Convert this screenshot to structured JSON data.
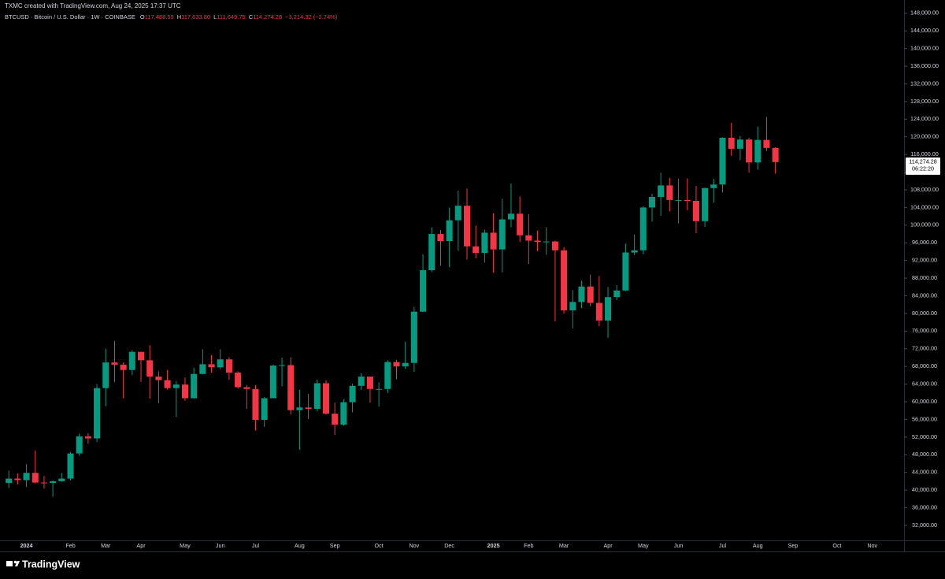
{
  "chart_data": {
    "type": "candlestick",
    "title": "TXMC created with TradingView.com, Aug 24, 2025 17:37 UTC",
    "subtitle": "BTCUSD · Bitcoin / U.S. Dollar · 1W · COINBASE",
    "ohlc_legend": [
      {
        "key": "O",
        "text": "117,488.59"
      },
      {
        "key": "H",
        "text": "117,633.80"
      },
      {
        "key": "L",
        "text": "111,649.75"
      },
      {
        "key": "C",
        "text": "114,274.28"
      }
    ],
    "change": "−3,214.32 (−2.74%)",
    "last_price": {
      "value": 114274.28,
      "label": "114,274.28",
      "countdown": "06:22:20"
    },
    "branding": "TradingView",
    "up_color": "#089981",
    "down_color": "#f23645",
    "open": [
      41600,
      42600,
      42250,
      43900,
      41700,
      41600,
      42000,
      42600,
      48300,
      52150,
      51700,
      63100,
      68900,
      68400,
      67200,
      71300,
      69400,
      65700,
      64900,
      63100,
      63900,
      60800,
      66300,
      68500,
      67800,
      69600,
      66600,
      63300,
      62900,
      55900,
      60800,
      68200,
      68300,
      58100,
      58700,
      58400,
      64200,
      57300,
      54800,
      59900,
      63600,
      65700,
      62900,
      62900,
      69000,
      68000,
      68800,
      80400,
      89800,
      98000,
      96400,
      101100,
      104400,
      95200,
      93700,
      98300,
      94500,
      101300,
      102600,
      97700,
      96500,
      96200,
      96300,
      94300,
      80700,
      82600,
      86100,
      82400,
      78400,
      83700,
      85200,
      93800,
      94300,
      104000,
      106400,
      109000,
      105700,
      105700,
      105500,
      100900,
      108400,
      109200,
      119800,
      117300,
      119400,
      114200,
      119300,
      117488.59
    ],
    "high": [
      44400,
      43800,
      45900,
      49000,
      43200,
      42200,
      43900,
      48600,
      52800,
      52900,
      64000,
      72000,
      73800,
      68900,
      71700,
      71300,
      72800,
      66900,
      67200,
      64700,
      65500,
      67700,
      71900,
      70600,
      71900,
      70100,
      66900,
      63800,
      63800,
      61100,
      68400,
      70000,
      70100,
      62700,
      61800,
      65000,
      64900,
      59800,
      60600,
      64100,
      66500,
      65700,
      64400,
      69400,
      69500,
      73600,
      81500,
      93400,
      99500,
      98900,
      104000,
      107800,
      108300,
      99900,
      99000,
      102700,
      106000,
      109400,
      106500,
      102500,
      98800,
      99500,
      96500,
      95000,
      85300,
      87400,
      88800,
      88500,
      86000,
      86400,
      95800,
      97900,
      104300,
      107100,
      111900,
      110700,
      110500,
      110600,
      108900,
      108500,
      110500,
      119900,
      123200,
      120200,
      119800,
      122300,
      124500,
      117633.8
    ],
    "low": [
      40500,
      41300,
      40750,
      41500,
      40300,
      38500,
      41900,
      42200,
      47800,
      50500,
      50900,
      59000,
      64500,
      60800,
      66000,
      64500,
      60700,
      59700,
      62800,
      56500,
      60200,
      60700,
      66200,
      66600,
      67400,
      65000,
      63000,
      58400,
      53500,
      54300,
      60800,
      63500,
      57100,
      49100,
      56100,
      57800,
      57100,
      52500,
      54600,
      57600,
      62700,
      59800,
      58900,
      62000,
      65100,
      67500,
      66800,
      80300,
      89400,
      90800,
      90500,
      94200,
      92200,
      92500,
      91500,
      89200,
      89300,
      99500,
      96200,
      91200,
      94100,
      93300,
      78200,
      80000,
      76600,
      81200,
      81600,
      77100,
      74500,
      83000,
      85100,
      93200,
      93400,
      100800,
      102100,
      103100,
      100400,
      103400,
      98200,
      99600,
      105100,
      107400,
      115700,
      114700,
      111900,
      112600,
      116800,
      111649.75
    ],
    "close": [
      42600,
      42250,
      43900,
      41700,
      41600,
      42000,
      42600,
      48300,
      52150,
      51700,
      63100,
      68900,
      68400,
      67200,
      71300,
      69400,
      65700,
      64900,
      63100,
      63900,
      60800,
      66300,
      68500,
      67800,
      69600,
      66600,
      63300,
      62900,
      55900,
      60800,
      68200,
      68300,
      58100,
      58700,
      58400,
      64200,
      57300,
      54800,
      59900,
      63600,
      65700,
      62900,
      62900,
      69000,
      68000,
      68800,
      80400,
      89800,
      98000,
      96400,
      101100,
      104400,
      95200,
      93700,
      98300,
      94500,
      101300,
      102600,
      97700,
      96500,
      96200,
      96300,
      94300,
      80700,
      82600,
      86100,
      82400,
      78400,
      83700,
      85200,
      93800,
      94300,
      104000,
      106400,
      109000,
      105700,
      105700,
      105500,
      100900,
      108400,
      109200,
      119800,
      117300,
      119400,
      114200,
      119300,
      117488.59,
      114274.28
    ],
    "xlim": [
      -1,
      101.6
    ],
    "xticks": [
      {
        "value": 2,
        "label": "2024"
      },
      {
        "value": 7,
        "label": "Feb"
      },
      {
        "value": 11,
        "label": "Mar"
      },
      {
        "value": 15,
        "label": "Apr"
      },
      {
        "value": 20,
        "label": "May"
      },
      {
        "value": 24,
        "label": "Jun"
      },
      {
        "value": 28,
        "label": "Jul"
      },
      {
        "value": 33,
        "label": "Aug"
      },
      {
        "value": 37,
        "label": "Sep"
      },
      {
        "value": 42,
        "label": "Oct"
      },
      {
        "value": 46,
        "label": "Nov"
      },
      {
        "value": 50,
        "label": "Dec"
      },
      {
        "value": 55,
        "label": "2025"
      },
      {
        "value": 59,
        "label": "Feb"
      },
      {
        "value": 63,
        "label": "Mar"
      },
      {
        "value": 68,
        "label": "Apr"
      },
      {
        "value": 72,
        "label": "May"
      },
      {
        "value": 76,
        "label": "Jun"
      },
      {
        "value": 81,
        "label": "Jul"
      },
      {
        "value": 85,
        "label": "Aug"
      },
      {
        "value": 89,
        "label": "Sep"
      },
      {
        "value": 94,
        "label": "Oct"
      },
      {
        "value": 98,
        "label": "Nov"
      }
    ],
    "ylim": [
      28600,
      148500
    ],
    "yticks": [
      {
        "value": 32000,
        "label": "32,000.00"
      },
      {
        "value": 36000,
        "label": "36,000.00"
      },
      {
        "value": 40000,
        "label": "40,000.00"
      },
      {
        "value": 44000,
        "label": "44,000.00"
      },
      {
        "value": 48000,
        "label": "48,000.00"
      },
      {
        "value": 52000,
        "label": "52,000.00"
      },
      {
        "value": 56000,
        "label": "56,000.00"
      },
      {
        "value": 60000,
        "label": "60,000.00"
      },
      {
        "value": 64000,
        "label": "64,000.00"
      },
      {
        "value": 68000,
        "label": "68,000.00"
      },
      {
        "value": 72000,
        "label": "72,000.00"
      },
      {
        "value": 76000,
        "label": "76,000.00"
      },
      {
        "value": 80000,
        "label": "80,000.00"
      },
      {
        "value": 84000,
        "label": "84,000.00"
      },
      {
        "value": 88000,
        "label": "88,000.00"
      },
      {
        "value": 92000,
        "label": "92,000.00"
      },
      {
        "value": 96000,
        "label": "96,000.00"
      },
      {
        "value": 100000,
        "label": "100,000.00"
      },
      {
        "value": 104000,
        "label": "104,000.00"
      },
      {
        "value": 108000,
        "label": "108,000.00"
      },
      {
        "value": 112000,
        "label": "112,000.00"
      },
      {
        "value": 116000,
        "label": "116,000.00"
      },
      {
        "value": 120000,
        "label": "120,000.00"
      },
      {
        "value": 124000,
        "label": "124,000.00"
      },
      {
        "value": 128000,
        "label": "128,000.00"
      },
      {
        "value": 132000,
        "label": "132,000.00"
      },
      {
        "value": 136000,
        "label": "136,000.00"
      },
      {
        "value": 140000,
        "label": "140,000.00"
      },
      {
        "value": 144000,
        "label": "144,000.00"
      },
      {
        "value": 148000,
        "label": "148,000.00"
      }
    ]
  }
}
